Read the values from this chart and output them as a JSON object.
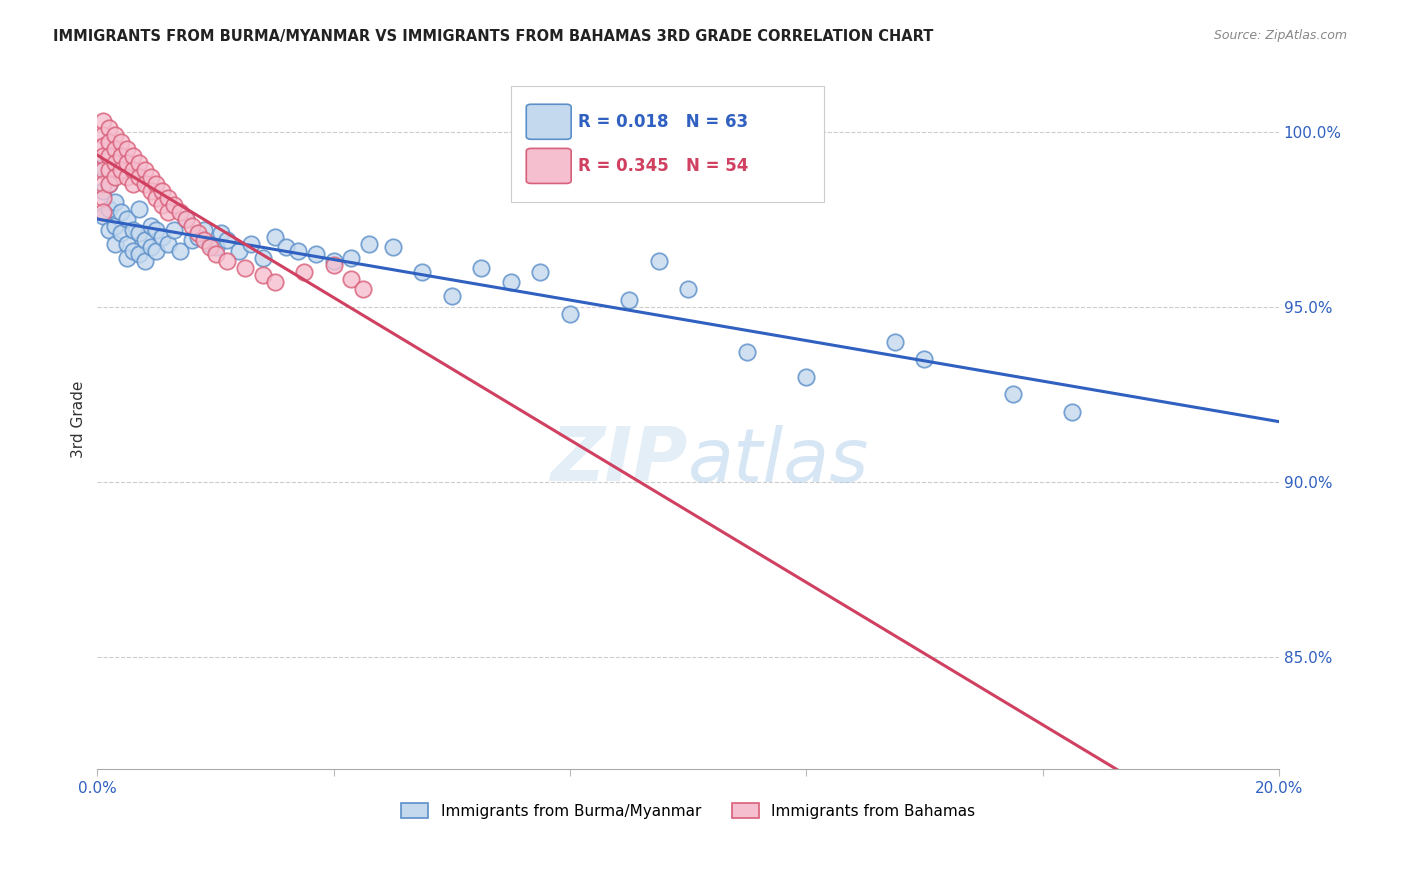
{
  "title": "IMMIGRANTS FROM BURMA/MYANMAR VS IMMIGRANTS FROM BAHAMAS 3RD GRADE CORRELATION CHART",
  "source": "Source: ZipAtlas.com",
  "ylabel": "3rd Grade",
  "ytick_labels": [
    "85.0%",
    "90.0%",
    "95.0%",
    "100.0%"
  ],
  "ytick_values": [
    0.85,
    0.9,
    0.95,
    1.0
  ],
  "xlim": [
    0.0,
    0.2
  ],
  "ylim": [
    0.818,
    1.018
  ],
  "legend_blue_r": "0.018",
  "legend_blue_n": "63",
  "legend_pink_r": "0.345",
  "legend_pink_n": "54",
  "legend_label_blue": "Immigrants from Burma/Myanmar",
  "legend_label_pink": "Immigrants from Bahamas",
  "blue_fill": "#c5d9ee",
  "blue_edge": "#5b8fc9",
  "pink_fill": "#f5bfcf",
  "pink_edge": "#d8607a",
  "blue_line": "#3060c0",
  "pink_line": "#d04060",
  "blue_x": [
    0.001,
    0.001,
    0.001,
    0.002,
    0.002,
    0.002,
    0.003,
    0.003,
    0.003,
    0.004,
    0.004,
    0.005,
    0.005,
    0.005,
    0.006,
    0.006,
    0.007,
    0.007,
    0.007,
    0.008,
    0.008,
    0.009,
    0.009,
    0.01,
    0.01,
    0.011,
    0.012,
    0.013,
    0.014,
    0.015,
    0.016,
    0.017,
    0.018,
    0.019,
    0.02,
    0.021,
    0.022,
    0.024,
    0.026,
    0.028,
    0.03,
    0.032,
    0.034,
    0.037,
    0.04,
    0.043,
    0.046,
    0.05,
    0.055,
    0.06,
    0.065,
    0.07,
    0.075,
    0.08,
    0.09,
    0.095,
    0.1,
    0.11,
    0.12,
    0.135,
    0.14,
    0.155,
    0.165
  ],
  "blue_y": [
    0.99,
    0.983,
    0.976,
    0.985,
    0.978,
    0.972,
    0.98,
    0.973,
    0.968,
    0.977,
    0.971,
    0.975,
    0.968,
    0.964,
    0.972,
    0.966,
    0.978,
    0.971,
    0.965,
    0.969,
    0.963,
    0.973,
    0.967,
    0.972,
    0.966,
    0.97,
    0.968,
    0.972,
    0.966,
    0.975,
    0.969,
    0.97,
    0.972,
    0.968,
    0.967,
    0.971,
    0.969,
    0.966,
    0.968,
    0.964,
    0.97,
    0.967,
    0.966,
    0.965,
    0.963,
    0.964,
    0.968,
    0.967,
    0.96,
    0.953,
    0.961,
    0.957,
    0.96,
    0.948,
    0.952,
    0.963,
    0.955,
    0.937,
    0.93,
    0.94,
    0.935,
    0.925,
    0.92
  ],
  "pink_x": [
    0.001,
    0.001,
    0.001,
    0.001,
    0.001,
    0.001,
    0.001,
    0.001,
    0.002,
    0.002,
    0.002,
    0.002,
    0.002,
    0.003,
    0.003,
    0.003,
    0.003,
    0.004,
    0.004,
    0.004,
    0.005,
    0.005,
    0.005,
    0.006,
    0.006,
    0.006,
    0.007,
    0.007,
    0.008,
    0.008,
    0.009,
    0.009,
    0.01,
    0.01,
    0.011,
    0.011,
    0.012,
    0.012,
    0.013,
    0.014,
    0.015,
    0.016,
    0.017,
    0.018,
    0.019,
    0.02,
    0.022,
    0.025,
    0.028,
    0.03,
    0.035,
    0.04,
    0.043,
    0.045
  ],
  "pink_y": [
    1.003,
    0.999,
    0.996,
    0.993,
    0.989,
    0.985,
    0.981,
    0.977,
    1.001,
    0.997,
    0.993,
    0.989,
    0.985,
    0.999,
    0.995,
    0.991,
    0.987,
    0.997,
    0.993,
    0.989,
    0.995,
    0.991,
    0.987,
    0.993,
    0.989,
    0.985,
    0.991,
    0.987,
    0.989,
    0.985,
    0.987,
    0.983,
    0.985,
    0.981,
    0.983,
    0.979,
    0.981,
    0.977,
    0.979,
    0.977,
    0.975,
    0.973,
    0.971,
    0.969,
    0.967,
    0.965,
    0.963,
    0.961,
    0.959,
    0.957,
    0.96,
    0.962,
    0.958,
    0.955
  ]
}
